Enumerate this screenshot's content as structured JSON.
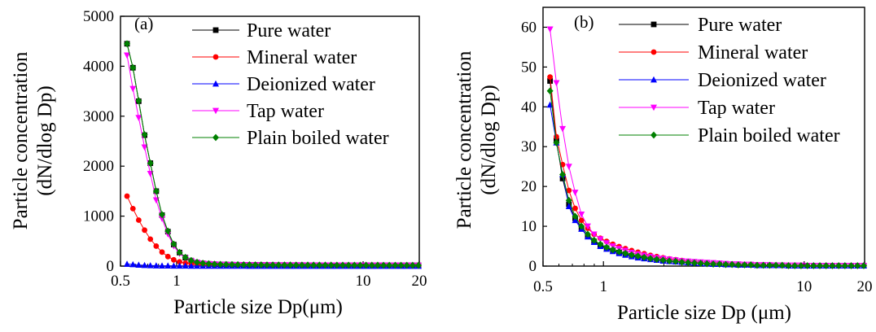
{
  "chart_data": [
    {
      "type": "line",
      "panel_label": "(a)",
      "xlabel": "Particle size Dp(μm)",
      "ylabel": [
        "Particle concentration",
        "(dN/dlog Dp)"
      ],
      "xscale": "log",
      "xlim": [
        0.5,
        20
      ],
      "ylim": [
        0,
        5000
      ],
      "xticks": [
        0.5,
        1,
        10,
        20
      ],
      "xtick_labels": [
        "0.5",
        "1",
        "10",
        "20"
      ],
      "yticks": [
        0,
        1000,
        2000,
        3000,
        4000,
        5000
      ],
      "ytick_labels": [
        "0",
        "1000",
        "2000",
        "3000",
        "4000",
        "5000"
      ],
      "legend_position": "top-right",
      "grid": false,
      "x": [
        0.542,
        0.583,
        0.626,
        0.673,
        0.723,
        0.777,
        0.835,
        0.898,
        0.965,
        1.037,
        1.114,
        1.197,
        1.286,
        1.382,
        1.486,
        1.596,
        1.715,
        1.843,
        1.981,
        2.129,
        2.288,
        2.458,
        2.642,
        2.839,
        3.051,
        3.278,
        3.523,
        3.786,
        4.068,
        4.371,
        4.698,
        5.048,
        5.425,
        5.829,
        6.264,
        6.732,
        7.234,
        7.774,
        8.354,
        8.977,
        9.647,
        10.37,
        11.14,
        11.97,
        12.86,
        13.82,
        14.86,
        15.96,
        17.15,
        18.43,
        19.81
      ],
      "series": [
        {
          "name": "Pure water",
          "color": "#000000",
          "marker": "square",
          "values": [
            4450,
            3970,
            3300,
            2620,
            2060,
            1500,
            1020,
            690,
            430,
            270,
            170,
            110,
            75,
            55,
            45,
            38,
            34,
            31,
            29,
            27,
            26,
            25,
            24,
            23,
            22,
            22,
            21,
            21,
            20,
            20,
            20,
            19,
            19,
            19,
            18,
            18,
            18,
            18,
            17,
            17,
            17,
            17,
            16,
            16,
            16,
            16,
            15,
            15,
            15,
            15,
            15
          ]
        },
        {
          "name": "Mineral water",
          "color": "#ff0000",
          "marker": "circle",
          "values": [
            1400,
            1150,
            920,
            720,
            540,
            400,
            280,
            190,
            125,
            85,
            60,
            45,
            36,
            30,
            27,
            25,
            23,
            22,
            21,
            20,
            20,
            19,
            19,
            18,
            18,
            18,
            17,
            17,
            17,
            17,
            16,
            16,
            16,
            16,
            15,
            15,
            15,
            15,
            15,
            14,
            14,
            14,
            14,
            14,
            13,
            13,
            13,
            13,
            13,
            13,
            12
          ]
        },
        {
          "name": "Deionized water",
          "color": "#0000ff",
          "marker": "triangle-up",
          "values": [
            41,
            32,
            23,
            16,
            12,
            9,
            7,
            6,
            5,
            4,
            4,
            3,
            3,
            3,
            2,
            2,
            2,
            2,
            2,
            2,
            2,
            1,
            1,
            1,
            1,
            1,
            1,
            1,
            1,
            1,
            1,
            1,
            1,
            1,
            1,
            1,
            1,
            1,
            1,
            1,
            1,
            1,
            1,
            1,
            1,
            1,
            1,
            1,
            1,
            1,
            1
          ]
        },
        {
          "name": "Tap water",
          "color": "#ff00ff",
          "marker": "triangle-down",
          "values": [
            4220,
            3550,
            2970,
            2380,
            1850,
            1320,
            950,
            640,
            400,
            250,
            160,
            105,
            72,
            53,
            43,
            36,
            32,
            29,
            27,
            26,
            25,
            24,
            23,
            22,
            21,
            21,
            20,
            20,
            19,
            19,
            19,
            18,
            18,
            18,
            17,
            17,
            17,
            17,
            16,
            16,
            16,
            16,
            15,
            15,
            15,
            15,
            15,
            14,
            14,
            14,
            14
          ]
        },
        {
          "name": "Plain boiled water",
          "color": "#008000",
          "marker": "diamond",
          "values": [
            4450,
            3970,
            3310,
            2630,
            2060,
            1500,
            1030,
            700,
            440,
            275,
            175,
            112,
            76,
            56,
            46,
            39,
            35,
            32,
            30,
            28,
            27,
            26,
            25,
            24,
            23,
            22,
            22,
            21,
            21,
            20,
            20,
            20,
            19,
            19,
            19,
            19,
            18,
            18,
            18,
            18,
            17,
            17,
            17,
            17,
            16,
            16,
            16,
            16,
            16,
            15,
            15
          ]
        }
      ]
    },
    {
      "type": "line",
      "panel_label": "(b)",
      "xlabel": "Particle size Dp (μm)",
      "ylabel": [
        "Particle concentration",
        "(dN/dlog Dp)"
      ],
      "xscale": "log",
      "xlim": [
        0.5,
        20
      ],
      "ylim": [
        0,
        65
      ],
      "xticks": [
        0.5,
        1,
        10,
        20
      ],
      "xtick_labels": [
        "0.5",
        "1",
        "10",
        "20"
      ],
      "yticks": [
        0,
        10,
        20,
        30,
        40,
        50,
        60
      ],
      "ytick_labels": [
        "0",
        "10",
        "20",
        "30",
        "40",
        "50",
        "60"
      ],
      "legend_position": "top-right",
      "grid": false,
      "x": [
        0.542,
        0.583,
        0.626,
        0.673,
        0.723,
        0.777,
        0.835,
        0.898,
        0.965,
        1.037,
        1.114,
        1.197,
        1.286,
        1.382,
        1.486,
        1.596,
        1.715,
        1.843,
        1.981,
        2.129,
        2.288,
        2.458,
        2.642,
        2.839,
        3.051,
        3.278,
        3.523,
        3.786,
        4.068,
        4.371,
        4.698,
        5.048,
        5.425,
        5.829,
        6.264,
        6.732,
        7.234,
        7.774,
        8.354,
        8.977,
        9.647,
        10.37,
        11.14,
        11.97,
        12.86,
        13.82,
        14.86,
        15.96,
        17.15,
        18.43,
        19.81
      ],
      "series": [
        {
          "name": "Pure water",
          "color": "#000000",
          "marker": "square",
          "values": [
            46.5,
            31.5,
            22,
            15.5,
            12,
            9.5,
            7.5,
            6.2,
            5.2,
            4.5,
            3.9,
            3.4,
            3,
            2.6,
            2.3,
            2,
            1.8,
            1.6,
            1.4,
            1.2,
            1.1,
            1,
            0.9,
            0.8,
            0.7,
            0.6,
            0.5,
            0.5,
            0.4,
            0.4,
            0.3,
            0.3,
            0.3,
            0.2,
            0.2,
            0.2,
            0.2,
            0.2,
            0.1,
            0.1,
            0.1,
            0.1,
            0.1,
            0.1,
            0.1,
            0.1,
            0.1,
            0.1,
            0.1,
            0.1,
            0.1
          ]
        },
        {
          "name": "Mineral water",
          "color": "#ff0000",
          "marker": "circle",
          "values": [
            47.5,
            32.5,
            25.5,
            19,
            14.5,
            11.5,
            9.5,
            8,
            7,
            6.2,
            5.5,
            4.9,
            4.4,
            3.9,
            3.5,
            3.1,
            2.7,
            2.4,
            2.1,
            1.8,
            1.6,
            1.4,
            1.2,
            1,
            0.9,
            0.8,
            0.7,
            0.6,
            0.5,
            0.5,
            0.4,
            0.4,
            0.3,
            0.3,
            0.3,
            0.2,
            0.2,
            0.2,
            0.2,
            0.2,
            0.1,
            0.1,
            0.1,
            0.1,
            0.1,
            0.1,
            0.1,
            0.1,
            0.1,
            0.1,
            0.1
          ]
        },
        {
          "name": "Deionized water",
          "color": "#0000ff",
          "marker": "triangle-up",
          "values": [
            40.5,
            31,
            23,
            15,
            11.5,
            9.3,
            7.4,
            6,
            5,
            4.3,
            3.7,
            3.2,
            2.8,
            2.4,
            2.1,
            1.9,
            1.7,
            1.5,
            1.3,
            1.2,
            1.1,
            1,
            0.9,
            0.8,
            0.7,
            0.6,
            0.5,
            0.5,
            0.4,
            0.4,
            0.3,
            0.3,
            0.3,
            0.2,
            0.2,
            0.2,
            0.2,
            0.2,
            0.1,
            0.1,
            0.1,
            0.1,
            0.1,
            0.1,
            0.1,
            0.1,
            0.1,
            0.1,
            0.1,
            0.1,
            0.1
          ]
        },
        {
          "name": "Tap water",
          "color": "#ff00ff",
          "marker": "triangle-down",
          "values": [
            59.5,
            46,
            34.5,
            25,
            18.5,
            13,
            10,
            8,
            6.8,
            5.8,
            5,
            4.4,
            3.9,
            3.4,
            3,
            2.7,
            2.4,
            2.1,
            1.9,
            1.7,
            1.5,
            1.3,
            1.2,
            1.1,
            1,
            0.9,
            0.8,
            0.7,
            0.6,
            0.5,
            0.5,
            0.4,
            0.4,
            0.3,
            0.3,
            0.3,
            0.2,
            0.2,
            0.2,
            0.2,
            0.2,
            0.1,
            0.1,
            0.1,
            0.1,
            0.1,
            0.1,
            0.1,
            0.1,
            0.1,
            0.1
          ]
        },
        {
          "name": "Plain boiled water",
          "color": "#008000",
          "marker": "diamond",
          "values": [
            44,
            31,
            23,
            16.5,
            12.5,
            10,
            8,
            6.5,
            5.5,
            4.7,
            4.1,
            3.6,
            3.2,
            2.8,
            2.5,
            2.2,
            1.9,
            1.7,
            1.5,
            1.3,
            1.2,
            1,
            0.9,
            0.8,
            0.7,
            0.6,
            0.5,
            0.5,
            0.4,
            0.4,
            0.3,
            0.3,
            0.3,
            0.2,
            0.2,
            0.2,
            0.2,
            0.2,
            0.1,
            0.1,
            0.1,
            0.1,
            0.1,
            0.1,
            0.1,
            0.1,
            0.1,
            0.1,
            0.1,
            0.1,
            0.1
          ]
        }
      ]
    }
  ]
}
